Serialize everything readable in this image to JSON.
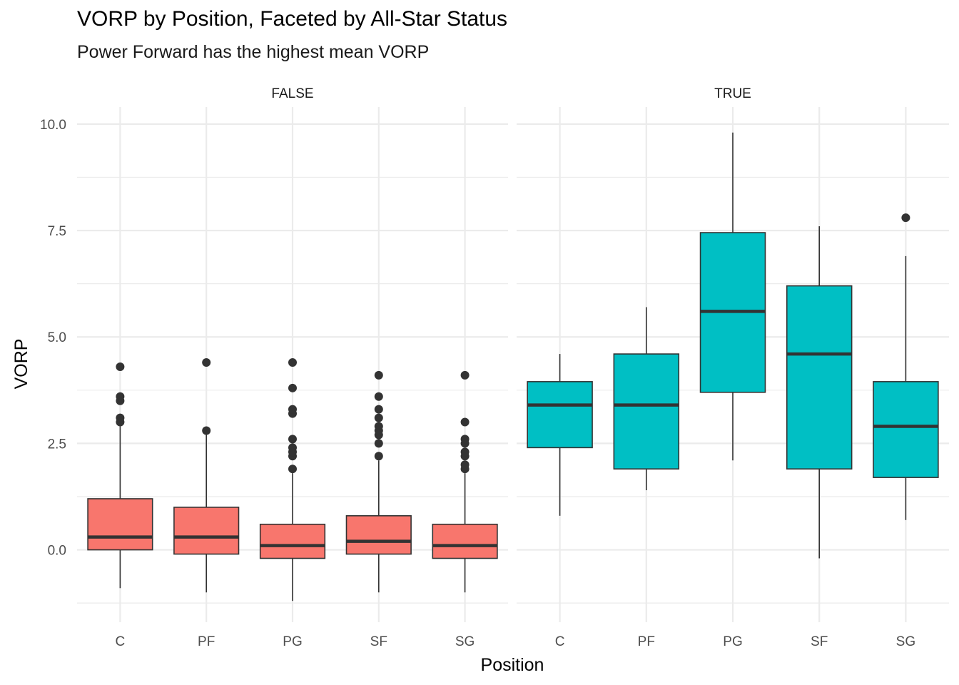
{
  "chart_data": {
    "type": "boxplot",
    "title": "VORP by Position, Faceted by All-Star Status",
    "subtitle": "Power Forward has the highest mean VORP",
    "xlabel": "Position",
    "ylabel": "VORP",
    "ylim": [
      -1.7,
      10.4
    ],
    "yticks": [
      0.0,
      2.5,
      5.0,
      7.5,
      10.0
    ],
    "ytick_labels": [
      "0.0",
      "2.5",
      "5.0",
      "7.5",
      "10.0"
    ],
    "categories": [
      "C",
      "PF",
      "PG",
      "SF",
      "SG"
    ],
    "grid": true,
    "facets": [
      {
        "label": "FALSE",
        "fill": "#F8766D",
        "boxes": [
          {
            "category": "C",
            "lower_whisker": -0.9,
            "q1": 0.0,
            "median": 0.3,
            "q3": 1.2,
            "upper_whisker": 2.9,
            "outliers": [
              3.0,
              3.1,
              3.5,
              3.6,
              4.3
            ]
          },
          {
            "category": "PF",
            "lower_whisker": -1.0,
            "q1": -0.1,
            "median": 0.3,
            "q3": 1.0,
            "upper_whisker": 2.7,
            "outliers": [
              2.8,
              4.4
            ]
          },
          {
            "category": "PG",
            "lower_whisker": -1.2,
            "q1": -0.2,
            "median": 0.1,
            "q3": 0.6,
            "upper_whisker": 1.8,
            "outliers": [
              1.9,
              2.2,
              2.3,
              2.4,
              2.6,
              3.2,
              3.3,
              3.8,
              4.4
            ]
          },
          {
            "category": "SF",
            "lower_whisker": -1.0,
            "q1": -0.1,
            "median": 0.2,
            "q3": 0.8,
            "upper_whisker": 2.1,
            "outliers": [
              2.2,
              2.5,
              2.7,
              2.8,
              2.9,
              3.1,
              3.3,
              3.6,
              4.1
            ]
          },
          {
            "category": "SG",
            "lower_whisker": -1.0,
            "q1": -0.2,
            "median": 0.1,
            "q3": 0.6,
            "upper_whisker": 1.8,
            "outliers": [
              1.9,
              2.0,
              2.2,
              2.3,
              2.5,
              2.6,
              3.0,
              4.1
            ]
          }
        ]
      },
      {
        "label": "TRUE",
        "fill": "#00BFC4",
        "boxes": [
          {
            "category": "C",
            "lower_whisker": 0.8,
            "q1": 2.4,
            "median": 3.4,
            "q3": 3.95,
            "upper_whisker": 4.6,
            "outliers": []
          },
          {
            "category": "PF",
            "lower_whisker": 1.4,
            "q1": 1.9,
            "median": 3.4,
            "q3": 4.6,
            "upper_whisker": 5.7,
            "outliers": []
          },
          {
            "category": "PG",
            "lower_whisker": 2.1,
            "q1": 3.7,
            "median": 5.6,
            "q3": 7.45,
            "upper_whisker": 9.8,
            "outliers": []
          },
          {
            "category": "SF",
            "lower_whisker": -0.2,
            "q1": 1.9,
            "median": 4.6,
            "q3": 6.2,
            "upper_whisker": 7.6,
            "outliers": []
          },
          {
            "category": "SG",
            "lower_whisker": 0.7,
            "q1": 1.7,
            "median": 2.9,
            "q3": 3.95,
            "upper_whisker": 6.9,
            "outliers": [
              7.8
            ]
          }
        ]
      }
    ]
  }
}
